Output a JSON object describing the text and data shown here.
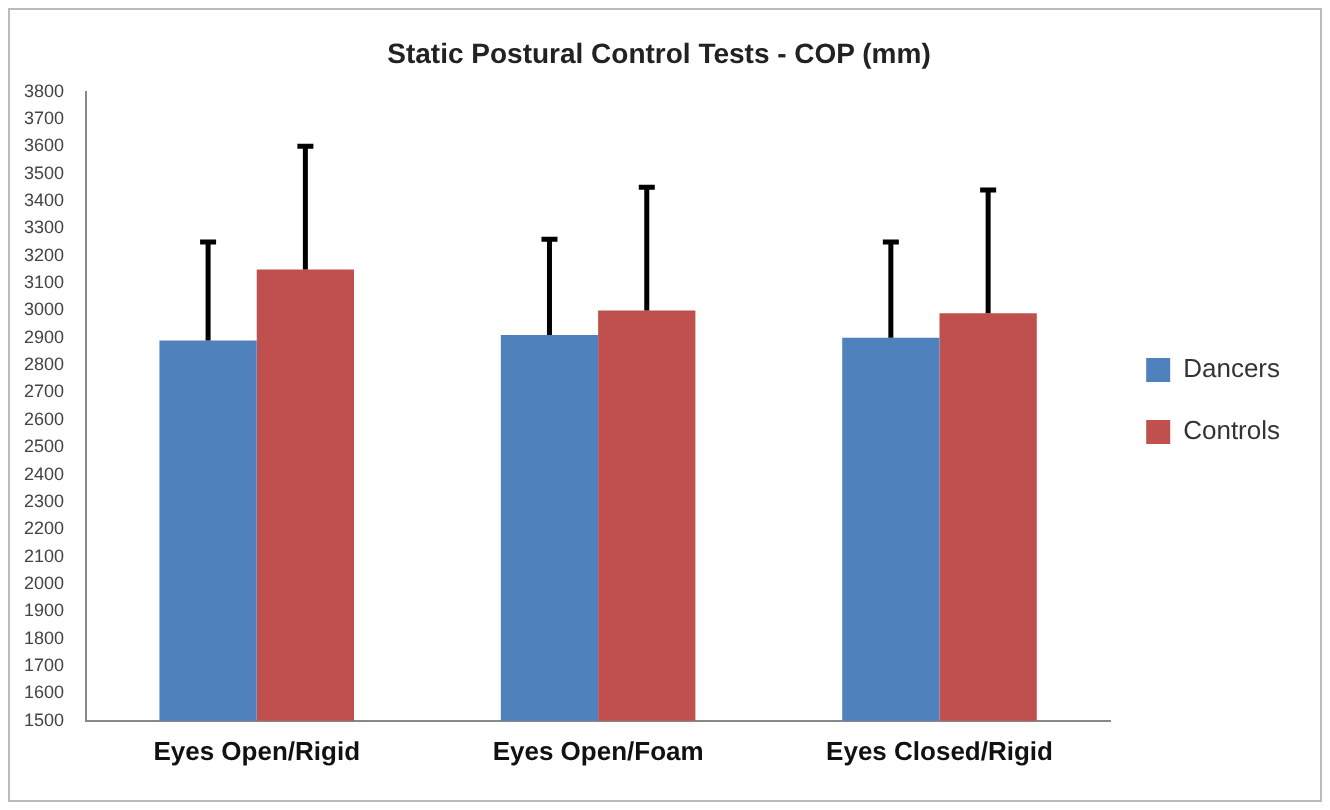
{
  "chart_data": {
    "type": "bar",
    "title": "Static Postural Control Tests - COP (mm)",
    "categories": [
      "Eyes Open/Rigid",
      "Eyes Open/Foam",
      "Eyes Closed/Rigid"
    ],
    "series": [
      {
        "name": "Dancers",
        "color": "#4f81bd",
        "values": [
          2890,
          2910,
          2900
        ],
        "errors": [
          [
            2890,
            3250
          ],
          [
            2910,
            3260
          ],
          [
            2900,
            3250
          ]
        ]
      },
      {
        "name": "Controls",
        "color": "#c0504d",
        "values": [
          3150,
          3000,
          2990
        ],
        "errors": [
          [
            3150,
            3600
          ],
          [
            3000,
            3450
          ],
          [
            2990,
            3440
          ]
        ]
      }
    ],
    "ylim": [
      1500,
      3800
    ],
    "yticks": [
      1500,
      1600,
      1700,
      1800,
      1900,
      2000,
      2100,
      2200,
      2300,
      2400,
      2500,
      2600,
      2700,
      2800,
      2900,
      3000,
      3100,
      3200,
      3300,
      3400,
      3500,
      3600,
      3700,
      3800
    ],
    "grid": false,
    "legend": "right"
  }
}
